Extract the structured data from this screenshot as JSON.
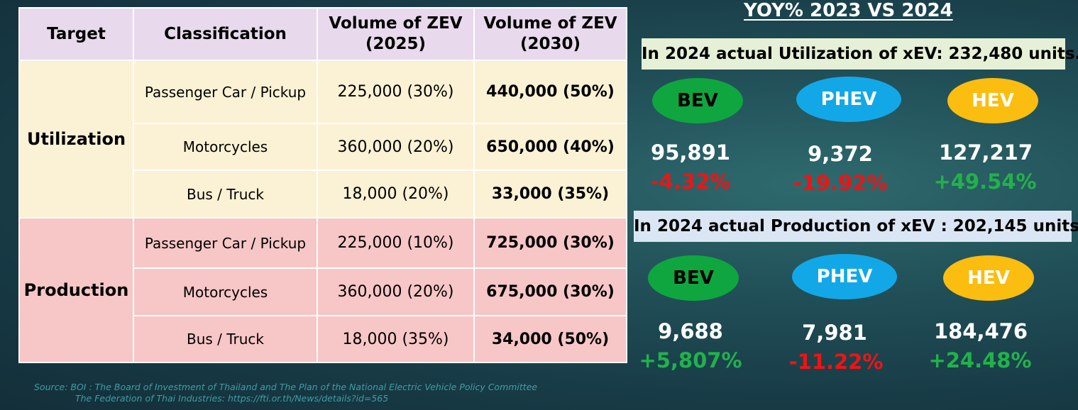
{
  "table": {
    "headers": [
      "Target",
      "Classification",
      "Volume of ZEV\n(2025)",
      "Volume of ZEV\n(2030)"
    ],
    "sections": [
      {
        "target": "Utilization",
        "rows": [
          {
            "classification": "Passenger Car / Pickup",
            "v2025": "225,000 (30%)",
            "v2030": "440,000 (50%)"
          },
          {
            "classification": "Motorcycles",
            "v2025": "360,000 (20%)",
            "v2030": "650,000 (40%)"
          },
          {
            "classification": "Bus / Truck",
            "v2025": "18,000 (20%)",
            "v2030": "33,000 (35%)"
          }
        ]
      },
      {
        "target": "Production",
        "rows": [
          {
            "classification": "Passenger Car / Pickup",
            "v2025": "225,000 (10%)",
            "v2030": "725,000 (30%)"
          },
          {
            "classification": "Motorcycles",
            "v2025": "360,000 (20%)",
            "v2030": "675,000 (30%)"
          },
          {
            "classification": "Bus / Truck",
            "v2025": "18,000 (35%)",
            "v2030": "34,000 (50%)"
          }
        ]
      }
    ]
  },
  "source": {
    "line1": "Source: BOI : The Board of Investment of Thailand and The Plan of the National Electric Vehicle Policy Committee",
    "line2": "The Federation of Thai Industries: https://fti.or.th/News/details?id=565"
  },
  "yoy": {
    "title": "YOY% 2023 VS 2024",
    "utilization": {
      "banner": "In 2024 actual Utilization of xEV: 232,480 units.",
      "items": [
        {
          "type": "BEV",
          "value": "95,891",
          "change": "-4.32%"
        },
        {
          "type": "PHEV",
          "value": "9,372",
          "change": "-19.92%"
        },
        {
          "type": "HEV",
          "value": "127,217",
          "change": "+49.54%"
        }
      ]
    },
    "production": {
      "banner": "In 2024 actual Production of xEV : 202,145 units.",
      "items": [
        {
          "type": "BEV",
          "value": "9,688",
          "change": "+5,807%"
        },
        {
          "type": "PHEV",
          "value": "7,981",
          "change": "-11.22%"
        },
        {
          "type": "HEV",
          "value": "184,476",
          "change": "+24.48%"
        }
      ]
    }
  },
  "colors": {
    "bev": "#0fa63f",
    "phev": "#12a8e8",
    "hev": "#fbbd0f",
    "negative": "#ee1414",
    "positive": "#21b24a",
    "header_bg": "#e8d9ec",
    "utilization_bg": "#fbf1d4",
    "production_bg": "#f7c6c6"
  }
}
